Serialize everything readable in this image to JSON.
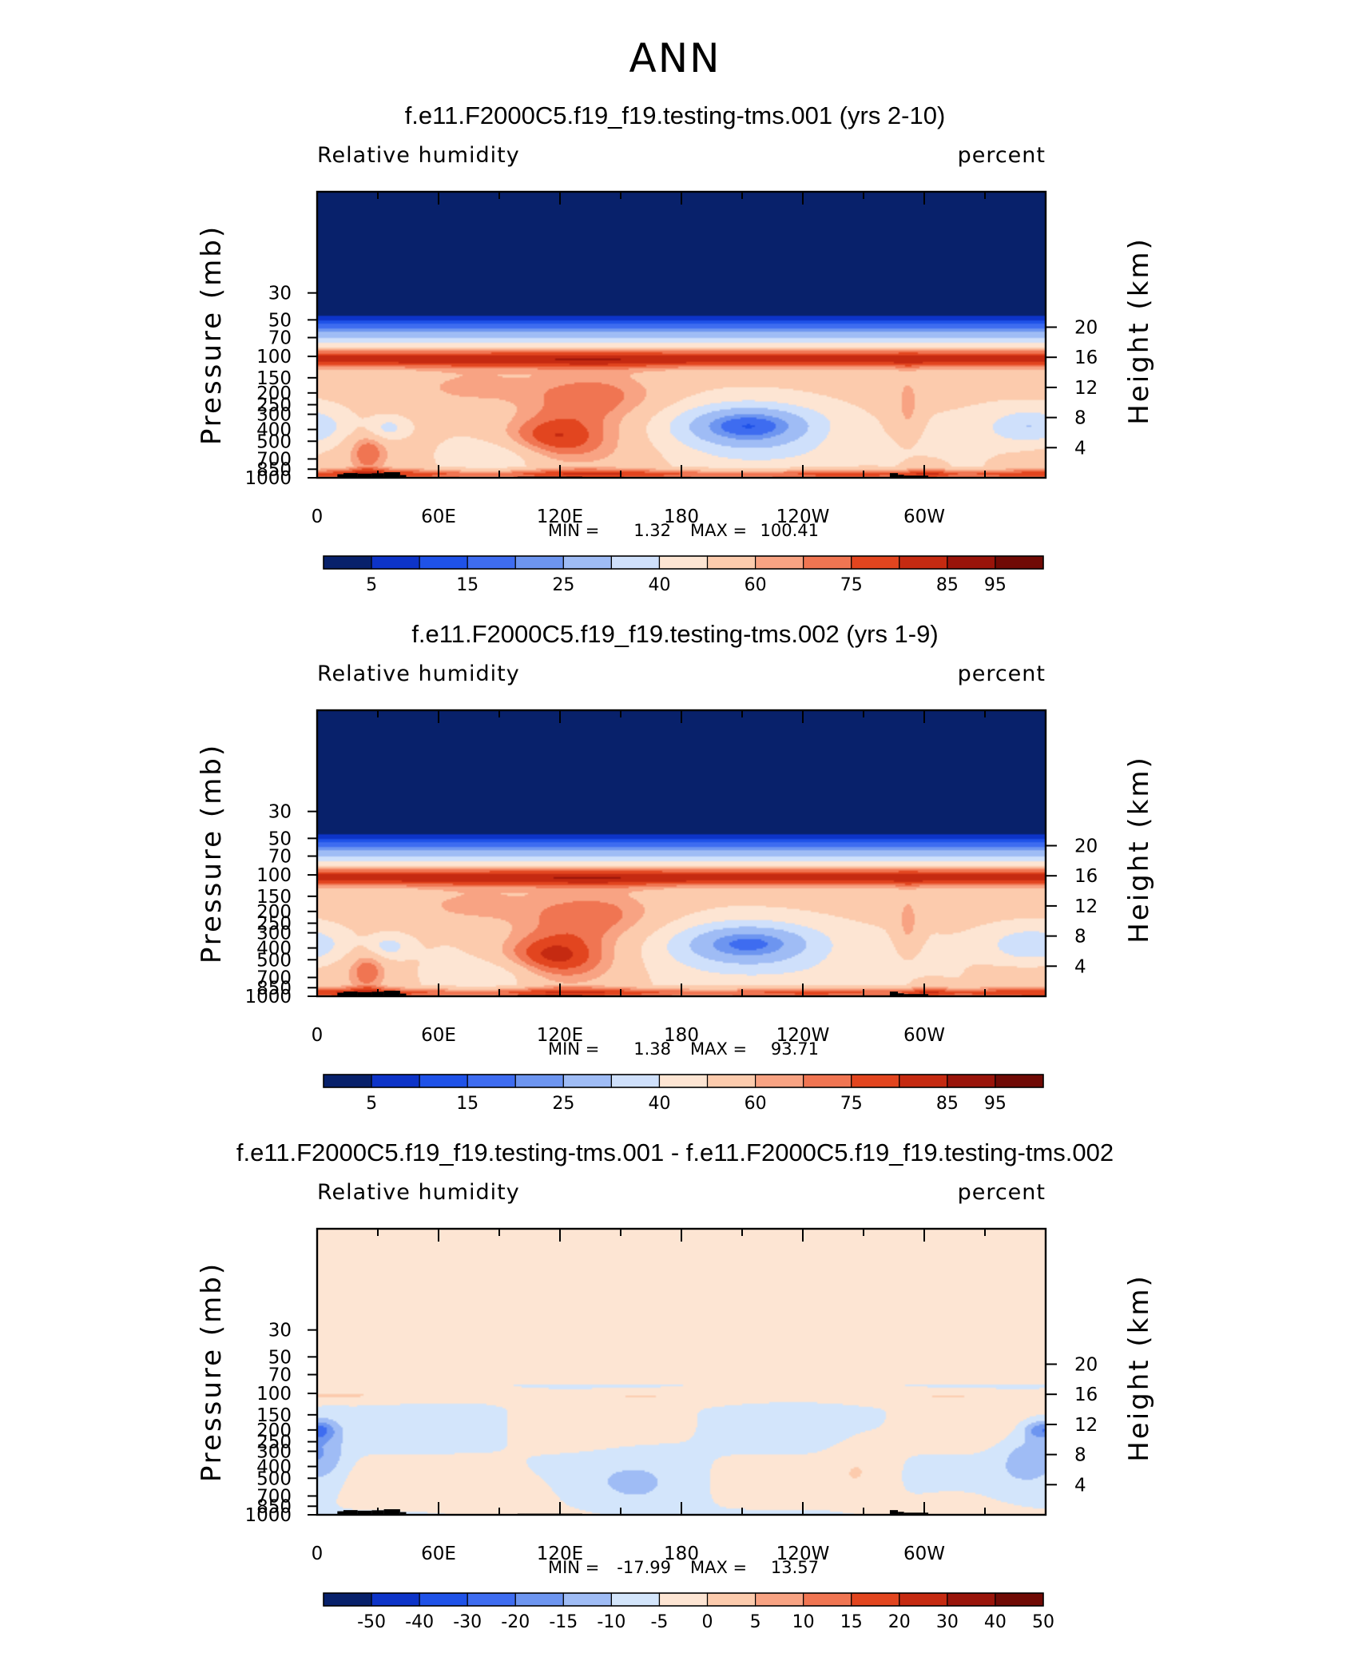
{
  "page_title": "ANN",
  "units_label": "percent",
  "axis_labels": {
    "ylabel_left": "Pressure (mb)",
    "ylabel_right": "Height (km)"
  },
  "colors": {
    "land": "#000000",
    "ramp_rh": [
      "#08216b",
      "#0d34c8",
      "#1f52e8",
      "#3e6cf0",
      "#6d95f0",
      "#9fbcf5",
      "#cfe0fb",
      "#fde5d3",
      "#fccbad",
      "#f8a383",
      "#f07552",
      "#e2451f",
      "#c52a11",
      "#99140a",
      "#700a05"
    ],
    "ramp_diff": [
      "#08216b",
      "#0d34c8",
      "#1f52e8",
      "#3e6cf0",
      "#6d95f0",
      "#9fbcf5",
      "#d3e5fb",
      "#fde5d3",
      "#fccbad",
      "#f8a383",
      "#f07552",
      "#e2451f",
      "#c52a11",
      "#99140a",
      "#700a05"
    ]
  },
  "chart_data": [
    {
      "type": "heatmap",
      "title": "f.e11.F2000C5.f19_f19.testing-tms.001 (yrs 2-10)",
      "variable": "Relative humidity",
      "units": "percent",
      "ylabel": "Pressure (mb)",
      "ylabel_right": "Height (km)",
      "x_ticklabels": [
        "0",
        "60E",
        "120E",
        "180",
        "120W",
        "60W"
      ],
      "y_ticklabels": [
        "30",
        "50",
        "70",
        "100",
        "150",
        "200",
        "250",
        "300",
        "400",
        "500",
        "700",
        "850",
        "1000"
      ],
      "y_levels": [
        30,
        50,
        70,
        100,
        150,
        200,
        250,
        300,
        400,
        500,
        700,
        850,
        1000
      ],
      "height_ticklabels": [
        "20",
        "16",
        "12",
        "8",
        "4"
      ],
      "height_km": [
        20,
        16,
        12,
        8,
        4
      ],
      "stats": {
        "min_label": "MIN =",
        "min": "1.32",
        "max_label": "MAX =",
        "max": "100.41"
      },
      "colorbar_labels": [
        "5",
        "15",
        "25",
        "40",
        "60",
        "75",
        "85",
        "95"
      ],
      "contour_levels": [
        5,
        10,
        15,
        20,
        25,
        30,
        40,
        50,
        60,
        70,
        75,
        80,
        85,
        90,
        95
      ],
      "field": "rh1"
    },
    {
      "type": "heatmap",
      "title": "f.e11.F2000C5.f19_f19.testing-tms.002 (yrs 1-9)",
      "variable": "Relative humidity",
      "units": "percent",
      "ylabel": "Pressure (mb)",
      "ylabel_right": "Height (km)",
      "x_ticklabels": [
        "0",
        "60E",
        "120E",
        "180",
        "120W",
        "60W"
      ],
      "y_ticklabels": [
        "30",
        "50",
        "70",
        "100",
        "150",
        "200",
        "250",
        "300",
        "400",
        "500",
        "700",
        "850",
        "1000"
      ],
      "y_levels": [
        30,
        50,
        70,
        100,
        150,
        200,
        250,
        300,
        400,
        500,
        700,
        850,
        1000
      ],
      "height_ticklabels": [
        "20",
        "16",
        "12",
        "8",
        "4"
      ],
      "height_km": [
        20,
        16,
        12,
        8,
        4
      ],
      "stats": {
        "min_label": "MIN =",
        "min": "1.38",
        "max_label": "MAX =",
        "max": "93.71"
      },
      "colorbar_labels": [
        "5",
        "15",
        "25",
        "40",
        "60",
        "75",
        "85",
        "95"
      ],
      "contour_levels": [
        5,
        10,
        15,
        20,
        25,
        30,
        40,
        50,
        60,
        70,
        75,
        80,
        85,
        90,
        95
      ],
      "field": "rh2"
    },
    {
      "type": "heatmap",
      "title": "f.e11.F2000C5.f19_f19.testing-tms.001 - f.e11.F2000C5.f19_f19.testing-tms.002",
      "variable": "Relative humidity",
      "units": "percent",
      "ylabel": "Pressure (mb)",
      "ylabel_right": "Height (km)",
      "x_ticklabels": [
        "0",
        "60E",
        "120E",
        "180",
        "120W",
        "60W"
      ],
      "y_ticklabels": [
        "30",
        "50",
        "70",
        "100",
        "150",
        "200",
        "250",
        "300",
        "400",
        "500",
        "700",
        "850",
        "1000"
      ],
      "y_levels": [
        30,
        50,
        70,
        100,
        150,
        200,
        250,
        300,
        400,
        500,
        700,
        850,
        1000
      ],
      "height_ticklabels": [
        "20",
        "16",
        "12",
        "8",
        "4"
      ],
      "height_km": [
        20,
        16,
        12,
        8,
        4
      ],
      "stats": {
        "min_label": "MIN =",
        "min": "-17.99",
        "max_label": "MAX =",
        "max": "13.57"
      },
      "colorbar_labels": [
        "-50",
        "-40",
        "-30",
        "-20",
        "-15",
        "-10",
        "-5",
        "0",
        "5",
        "10",
        "15",
        "20",
        "30",
        "40",
        "50"
      ],
      "contour_levels": [
        -50,
        -40,
        -30,
        -20,
        -15,
        -10,
        -5,
        0,
        5,
        10,
        15,
        20,
        30,
        40,
        50
      ],
      "field": "diff"
    }
  ]
}
